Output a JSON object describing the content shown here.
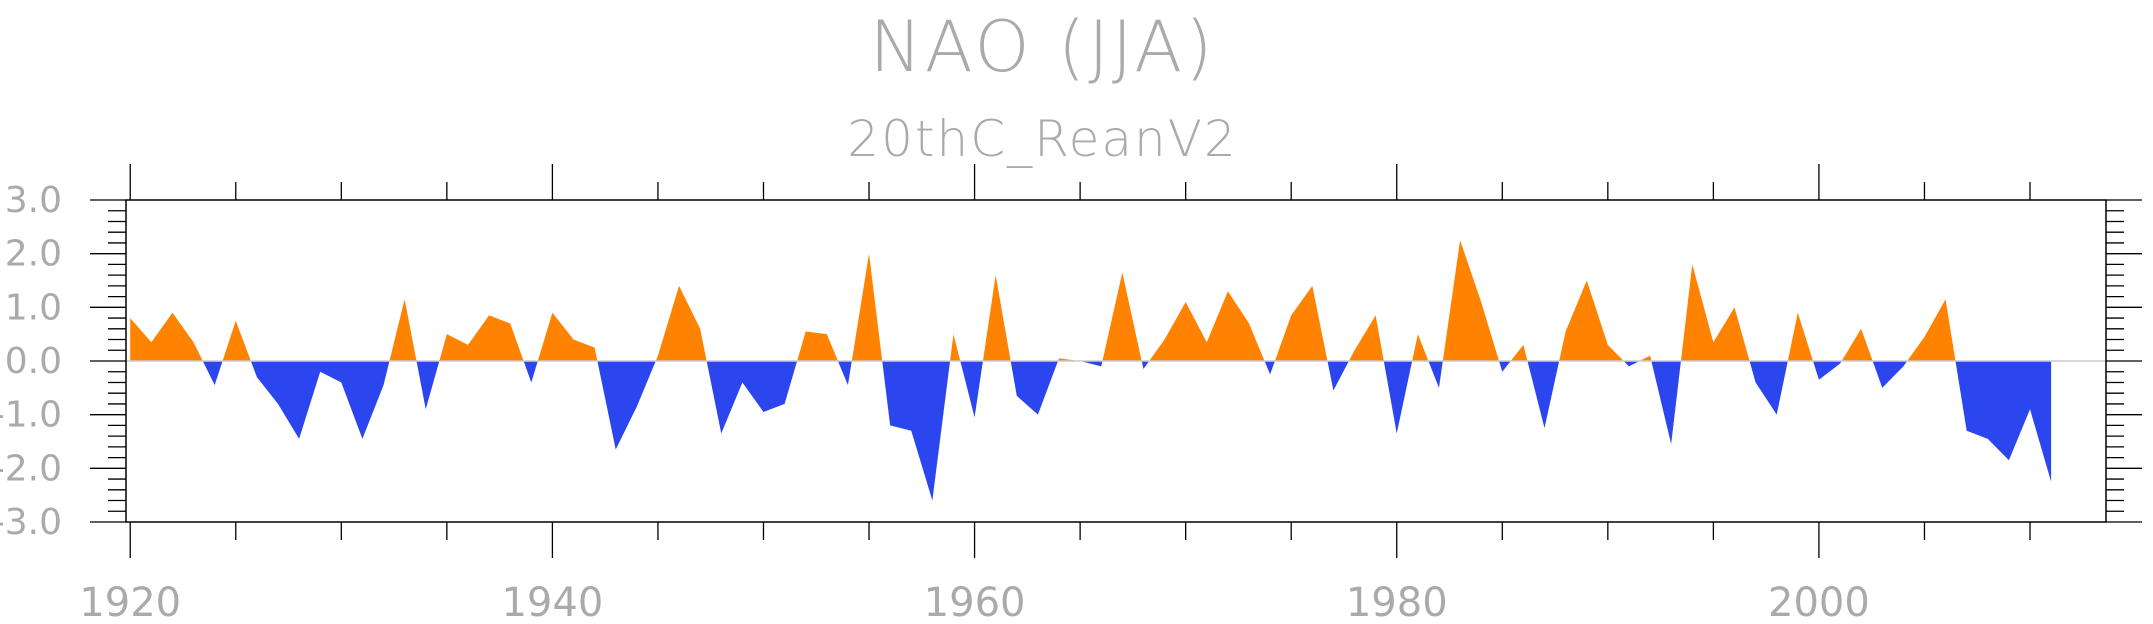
{
  "chart_data": {
    "type": "area",
    "title": "NAO (JJA)",
    "subtitle": "20thC_ReanV2",
    "xlabel": "",
    "ylabel": "",
    "xlim": [
      1919.8,
      2013.6
    ],
    "ylim": [
      -3.0,
      3.0
    ],
    "x_ticks": [
      1920,
      1940,
      1960,
      1980,
      2000
    ],
    "x_tick_labels": [
      "1920",
      "1940",
      "1960",
      "1980",
      "2000"
    ],
    "y_ticks": [
      3.0,
      2.0,
      1.0,
      0.0,
      -1.0,
      -2.0,
      -3.0
    ],
    "y_tick_labels": [
      "3.0",
      "2.0",
      "1.0",
      "0.0",
      "-1.0",
      "-2.0",
      "-3.0"
    ],
    "fill_colors": {
      "positive": "#ff8200",
      "negative": "#2b46ef"
    },
    "zero_line_color": "#cccccc",
    "x": [
      1920,
      1921,
      1922,
      1923,
      1924,
      1925,
      1926,
      1927,
      1928,
      1929,
      1930,
      1931,
      1932,
      1933,
      1934,
      1935,
      1936,
      1937,
      1938,
      1939,
      1940,
      1941,
      1942,
      1943,
      1944,
      1945,
      1946,
      1947,
      1948,
      1949,
      1950,
      1951,
      1952,
      1953,
      1954,
      1955,
      1956,
      1957,
      1958,
      1959,
      1960,
      1961,
      1962,
      1963,
      1964,
      1965,
      1966,
      1967,
      1968,
      1969,
      1970,
      1971,
      1972,
      1973,
      1974,
      1975,
      1976,
      1977,
      1978,
      1979,
      1980,
      1981,
      1982,
      1983,
      1984,
      1985,
      1986,
      1987,
      1988,
      1989,
      1990,
      1991,
      1992,
      1993,
      1994,
      1995,
      1996,
      1997,
      1998,
      1999,
      2000,
      2001,
      2002,
      2003,
      2004,
      2005,
      2006,
      2007,
      2008,
      2009,
      2010,
      2011
    ],
    "y": [
      0.8,
      0.35,
      0.9,
      0.35,
      -0.45,
      0.75,
      -0.3,
      -0.8,
      -1.45,
      -0.2,
      -0.4,
      -1.45,
      -0.45,
      1.15,
      -0.9,
      0.5,
      0.3,
      0.85,
      0.7,
      -0.4,
      0.9,
      0.4,
      0.25,
      -1.65,
      -0.85,
      0.1,
      1.4,
      0.6,
      -1.35,
      -0.4,
      -0.95,
      -0.8,
      0.55,
      0.5,
      -0.45,
      2.0,
      -1.2,
      -1.3,
      -2.6,
      0.5,
      -1.05,
      1.6,
      -0.65,
      -1.0,
      0.05,
      0.0,
      -0.1,
      1.65,
      -0.15,
      0.4,
      1.1,
      0.35,
      1.3,
      0.7,
      -0.25,
      0.85,
      1.4,
      -0.55,
      0.2,
      0.85,
      -1.35,
      0.5,
      -0.5,
      2.25,
      1.1,
      -0.2,
      0.3,
      -1.25,
      0.55,
      1.5,
      0.3,
      -0.1,
      0.1,
      -1.55,
      1.8,
      0.35,
      1.0,
      -0.4,
      -1.0,
      0.9,
      -0.35,
      -0.05,
      0.6,
      -0.5,
      -0.1,
      0.45,
      1.15,
      -1.3,
      -1.45,
      -1.85,
      -0.9,
      -2.25
    ]
  }
}
